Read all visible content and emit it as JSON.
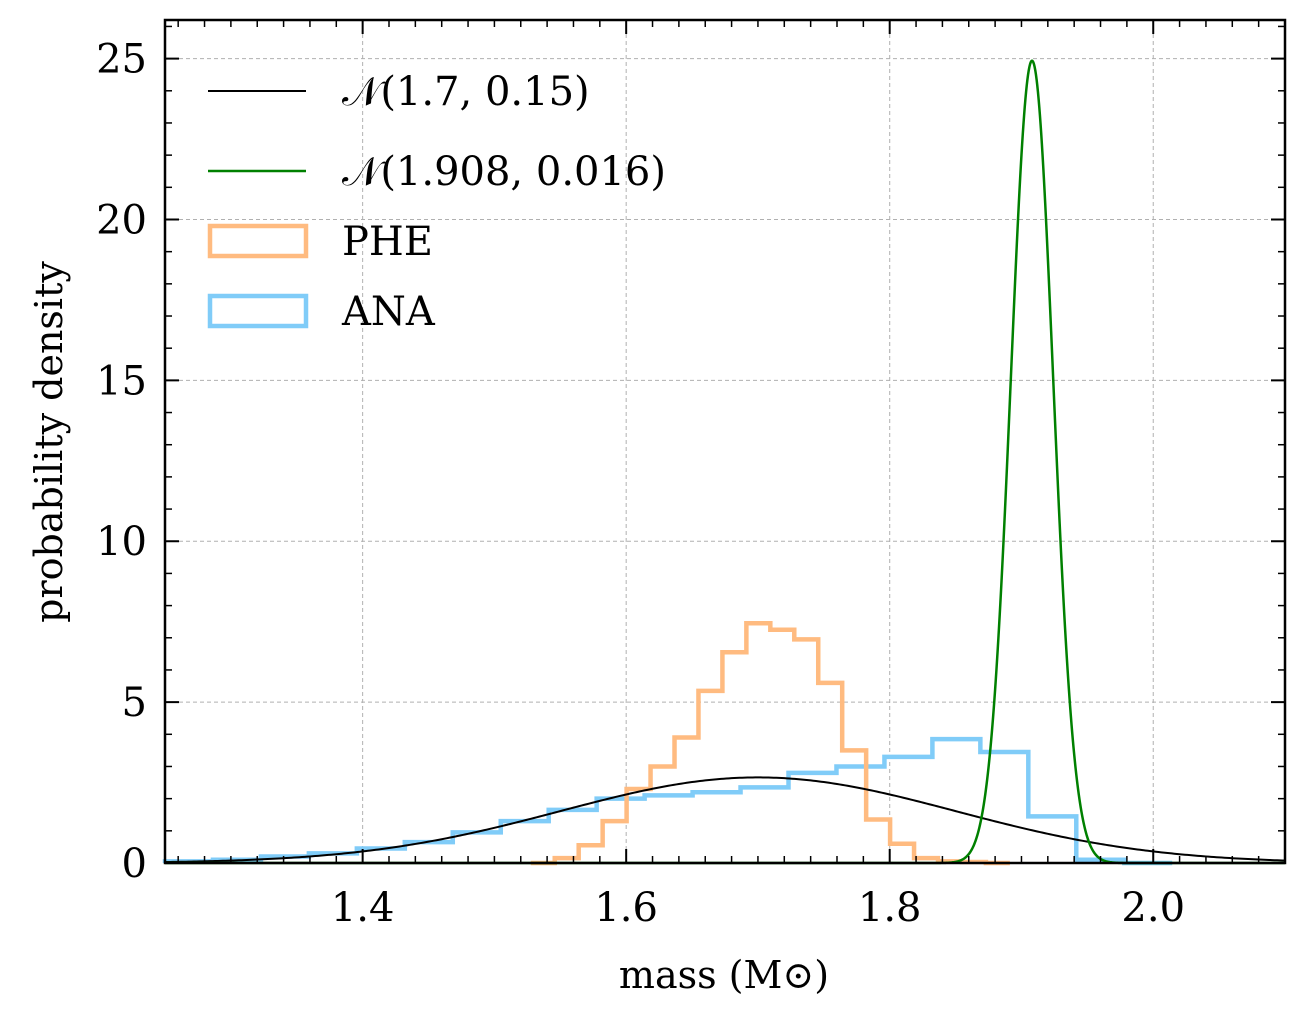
{
  "chart_data": {
    "type": "line",
    "xlabel": "mass (M⊙)",
    "ylabel": "probability density",
    "xlim": [
      1.25,
      2.1
    ],
    "ylim": [
      0,
      26.2
    ],
    "xticks": [
      1.4,
      1.6,
      1.8,
      2.0
    ],
    "xtick_labels": [
      "1.4",
      "1.6",
      "1.8",
      "2.0"
    ],
    "yticks": [
      0,
      5,
      10,
      15,
      20,
      25
    ],
    "ytick_labels": [
      "0",
      "5",
      "10",
      "15",
      "20",
      "25"
    ],
    "grid": true,
    "legend_position": "top-left",
    "series": [
      {
        "name": "𝒩(1.7, 0.15)",
        "kind": "normal",
        "mu": 1.7,
        "sigma": 0.15,
        "color": "#000000"
      },
      {
        "name": "𝒩(1.908, 0.016)",
        "kind": "normal",
        "mu": 1.908,
        "sigma": 0.016,
        "color": "#008000"
      },
      {
        "name": "PHE",
        "kind": "step-histogram",
        "color": "#ffbb80",
        "bin_start": 1.5276,
        "bin_width": 0.01818,
        "values": [
          0.0,
          0.15,
          0.55,
          1.3,
          2.3,
          3.0,
          3.9,
          5.35,
          6.55,
          7.45,
          7.25,
          6.95,
          5.6,
          3.5,
          1.35,
          0.6,
          0.15,
          0.05,
          0.03,
          0.0
        ]
      },
      {
        "name": "ANA",
        "kind": "step-histogram",
        "color": "#80ccf8",
        "bin_start": 1.25,
        "bin_width": 0.0364,
        "values": [
          0.05,
          0.1,
          0.2,
          0.3,
          0.45,
          0.65,
          0.95,
          1.3,
          1.65,
          2.0,
          2.1,
          2.2,
          2.35,
          2.8,
          3.0,
          3.3,
          3.85,
          3.45,
          1.45,
          0.1,
          0.0
        ]
      }
    ]
  }
}
